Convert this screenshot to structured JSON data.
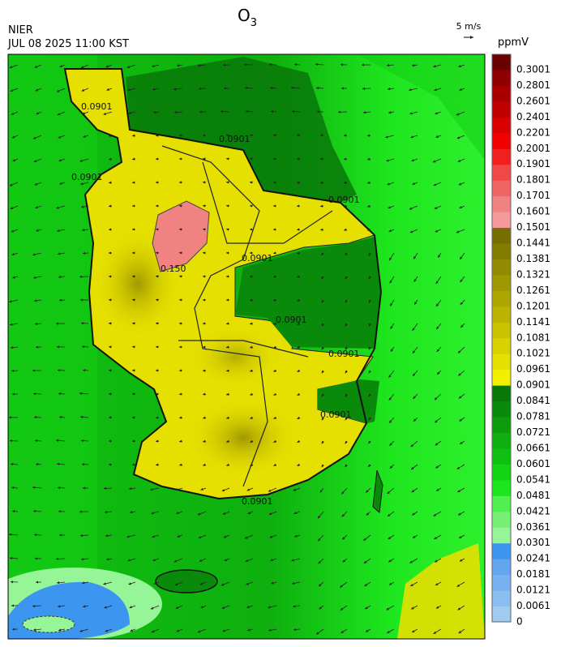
{
  "header": {
    "title": "O",
    "title_subscript": "3",
    "agency": "NIER",
    "timestamp": "JUL 08 2025 11:00 KST",
    "vector_scale": "5 m/s"
  },
  "colorbar": {
    "unit": "ppmV",
    "labels": [
      "0",
      "0.0061",
      "0.0121",
      "0.0181",
      "0.0241",
      "0.0301",
      "0.0361",
      "0.0421",
      "0.0481",
      "0.0541",
      "0.0601",
      "0.0661",
      "0.0721",
      "0.0781",
      "0.0841",
      "0.0901",
      "0.0961",
      "0.1021",
      "0.1081",
      "0.1141",
      "0.1201",
      "0.1261",
      "0.1321",
      "0.1381",
      "0.1441",
      "0.1501",
      "0.1601",
      "0.1701",
      "0.1801",
      "0.1901",
      "0.2001",
      "0.2201",
      "0.2401",
      "0.2601",
      "0.2801",
      "0.3001"
    ],
    "colors": [
      "#9ecbee",
      "#8cbdf0",
      "#78b0f0",
      "#64a5f0",
      "#3c96f0",
      "#96f596",
      "#78f078",
      "#50f050",
      "#1ee61e",
      "#14d214",
      "#10c010",
      "#0eaf0e",
      "#0c9c0c",
      "#0a8a0a",
      "#087808",
      "#f0f000",
      "#e6e000",
      "#d8d200",
      "#cac400",
      "#bcb400",
      "#aea600",
      "#a09800",
      "#928a00",
      "#847c00",
      "#766e00",
      "#f59a9a",
      "#f08282",
      "#f06464",
      "#f04848",
      "#f02020",
      "#f00000",
      "#d80000",
      "#c00000",
      "#a80000",
      "#900000",
      "#6a0000"
    ]
  },
  "contour_labels": [
    "0.0901",
    "0.0901",
    "0.0901",
    "0.0901",
    "0.0901",
    "0.0901",
    "0.0901",
    "0.0901",
    "0.0901",
    "0.150"
  ]
}
